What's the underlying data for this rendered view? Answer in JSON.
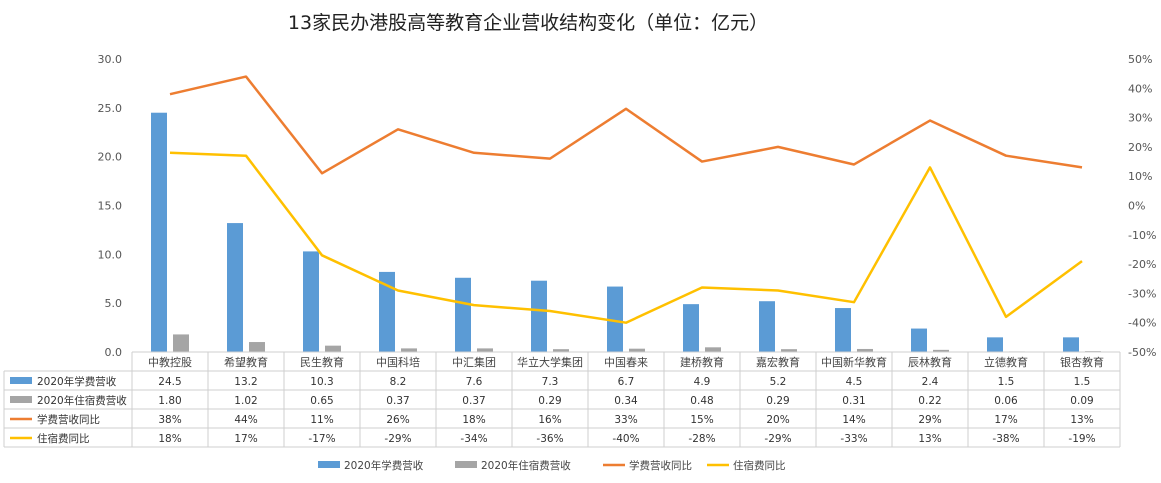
{
  "chart_data": {
    "type": "bar",
    "title": "13家民办港股高等教育企业营收结构变化（单位：亿元）",
    "categories": [
      "中教控股",
      "希望教育",
      "民生教育",
      "中国科培",
      "中汇集团",
      "华立大学集团",
      "中国春来",
      "建桥教育",
      "嘉宏教育",
      "中国新华教育",
      "辰林教育",
      "立德教育",
      "银杏教育"
    ],
    "series": [
      {
        "name": "2020年学费营收",
        "kind": "bar",
        "axis": "left",
        "color": "#5b9bd5",
        "values": [
          24.5,
          13.2,
          10.3,
          8.2,
          7.6,
          7.3,
          6.7,
          4.9,
          5.2,
          4.5,
          2.4,
          1.5,
          1.5
        ],
        "labels": [
          "24.5",
          "13.2",
          "10.3",
          "8.2",
          "7.6",
          "7.3",
          "6.7",
          "4.9",
          "5.2",
          "4.5",
          "2.4",
          "1.5",
          "1.5"
        ]
      },
      {
        "name": "2020年住宿费营收",
        "kind": "bar",
        "axis": "left",
        "color": "#a5a5a5",
        "values": [
          1.8,
          1.02,
          0.65,
          0.37,
          0.37,
          0.29,
          0.34,
          0.48,
          0.29,
          0.31,
          0.22,
          0.06,
          0.09
        ],
        "labels": [
          "1.80",
          "1.02",
          "0.65",
          "0.37",
          "0.37",
          "0.29",
          "0.34",
          "0.48",
          "0.29",
          "0.31",
          "0.22",
          "0.06",
          "0.09"
        ]
      },
      {
        "name": "学费营收同比",
        "kind": "line",
        "axis": "right",
        "color": "#ed7d31",
        "values": [
          38,
          44,
          11,
          26,
          18,
          16,
          33,
          15,
          20,
          14,
          29,
          17,
          13
        ],
        "labels": [
          "38%",
          "44%",
          "11%",
          "26%",
          "18%",
          "16%",
          "33%",
          "15%",
          "20%",
          "14%",
          "29%",
          "17%",
          "13%"
        ]
      },
      {
        "name": "住宿费同比",
        "kind": "line",
        "axis": "right",
        "color": "#ffc000",
        "values": [
          18,
          17,
          -17,
          -29,
          -34,
          -36,
          -40,
          -28,
          -29,
          -33,
          13,
          -38,
          -19
        ],
        "labels": [
          "18%",
          "17%",
          "-17%",
          "-29%",
          "-34%",
          "-36%",
          "-40%",
          "-28%",
          "-29%",
          "-33%",
          "13%",
          "-38%",
          "-19%"
        ]
      }
    ],
    "y_left": {
      "range": [
        0,
        30
      ],
      "ticks": [
        "0.0",
        "5.0",
        "10.0",
        "15.0",
        "20.0",
        "25.0",
        "30.0"
      ]
    },
    "y_right": {
      "range": [
        -50,
        50
      ],
      "ticks": [
        "-50%",
        "-40%",
        "-30%",
        "-20%",
        "-10%",
        "0%",
        "10%",
        "20%",
        "30%",
        "40%",
        "50%"
      ]
    },
    "grid": false,
    "legend_position": "bottom"
  }
}
